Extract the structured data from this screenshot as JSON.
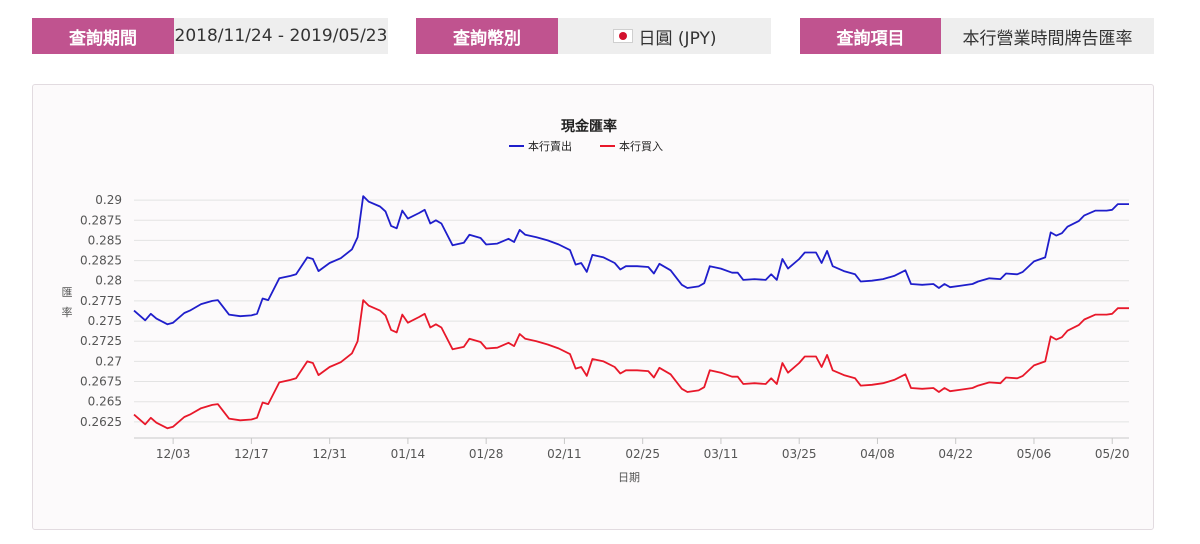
{
  "filters": {
    "period": {
      "label": "查詢期間",
      "value": "2018/11/24 - 2019/05/23"
    },
    "currency": {
      "label": "查詢幣別",
      "value": "日圓 (JPY)",
      "flag_icon": "japan-flag-icon"
    },
    "item": {
      "label": "查詢項目",
      "value": "本行營業時間牌告匯率"
    }
  },
  "colors": {
    "accent": "#c0538f",
    "sell": "#1f1ecb",
    "buy": "#e8182a",
    "grid": "#e3e3e3"
  },
  "chart_data": {
    "type": "line",
    "title": "現金匯率",
    "xlabel": "日期",
    "ylabel": "匯率",
    "ylim": [
      0.2605,
      0.2915
    ],
    "yticks": [
      0.2625,
      0.265,
      0.2675,
      0.27,
      0.2725,
      0.275,
      0.2775,
      0.28,
      0.2825,
      0.285,
      0.2875,
      0.29
    ],
    "ytick_labels": [
      "0.2625",
      "0.265",
      "0.2675",
      "0.27",
      "0.2725",
      "0.275",
      "0.2775",
      "0.28",
      "0.2825",
      "0.285",
      "0.2875",
      "0.29"
    ],
    "xticks": [
      "2018-12-03",
      "2018-12-17",
      "2018-12-31",
      "2019-01-14",
      "2019-01-28",
      "2019-02-11",
      "2019-02-25",
      "2019-03-11",
      "2019-03-25",
      "2019-04-08",
      "2019-04-22",
      "2019-05-06",
      "2019-05-20"
    ],
    "xtick_labels": [
      "12/03",
      "12/17",
      "12/31",
      "01/14",
      "01/28",
      "02/11",
      "02/25",
      "03/11",
      "03/25",
      "04/08",
      "04/22",
      "05/06",
      "05/20"
    ],
    "xrange": [
      "2018-11-26",
      "2019-05-23"
    ],
    "legend_position": "top-center",
    "grid": true,
    "series": [
      {
        "name": "本行賣出",
        "color": "#1f1ecb",
        "points": [
          [
            "2018-11-26",
            0.2763
          ],
          [
            "2018-11-28",
            0.2751
          ],
          [
            "2018-11-29",
            0.2759
          ],
          [
            "2018-11-30",
            0.2753
          ],
          [
            "2018-12-02",
            0.2746
          ],
          [
            "2018-12-03",
            0.2748
          ],
          [
            "2018-12-05",
            0.276
          ],
          [
            "2018-12-06",
            0.2763
          ],
          [
            "2018-12-08",
            0.2771
          ],
          [
            "2018-12-10",
            0.2775
          ],
          [
            "2018-12-11",
            0.2776
          ],
          [
            "2018-12-13",
            0.2758
          ],
          [
            "2018-12-15",
            0.2756
          ],
          [
            "2018-12-17",
            0.2757
          ],
          [
            "2018-12-18",
            0.2759
          ],
          [
            "2018-12-19",
            0.2778
          ],
          [
            "2018-12-20",
            0.2776
          ],
          [
            "2018-12-22",
            0.2803
          ],
          [
            "2018-12-24",
            0.2806
          ],
          [
            "2018-12-25",
            0.2808
          ],
          [
            "2018-12-27",
            0.2829
          ],
          [
            "2018-12-28",
            0.2827
          ],
          [
            "2018-12-29",
            0.2812
          ],
          [
            "2018-12-31",
            0.2822
          ],
          [
            "2019-01-02",
            0.2828
          ],
          [
            "2019-01-04",
            0.2839
          ],
          [
            "2019-01-05",
            0.2854
          ],
          [
            "2019-01-06",
            0.2905
          ],
          [
            "2019-01-07",
            0.2898
          ],
          [
            "2019-01-09",
            0.2892
          ],
          [
            "2019-01-10",
            0.2886
          ],
          [
            "2019-01-11",
            0.2868
          ],
          [
            "2019-01-12",
            0.2865
          ],
          [
            "2019-01-13",
            0.2887
          ],
          [
            "2019-01-14",
            0.2877
          ],
          [
            "2019-01-16",
            0.2884
          ],
          [
            "2019-01-17",
            0.2888
          ],
          [
            "2019-01-18",
            0.2871
          ],
          [
            "2019-01-19",
            0.2875
          ],
          [
            "2019-01-20",
            0.2871
          ],
          [
            "2019-01-22",
            0.2844
          ],
          [
            "2019-01-24",
            0.2847
          ],
          [
            "2019-01-25",
            0.2857
          ],
          [
            "2019-01-27",
            0.2853
          ],
          [
            "2019-01-28",
            0.2845
          ],
          [
            "2019-01-30",
            0.2846
          ],
          [
            "2019-02-01",
            0.2852
          ],
          [
            "2019-02-02",
            0.2848
          ],
          [
            "2019-02-03",
            0.2863
          ],
          [
            "2019-02-04",
            0.2857
          ],
          [
            "2019-02-06",
            0.2854
          ],
          [
            "2019-02-08",
            0.285
          ],
          [
            "2019-02-10",
            0.2845
          ],
          [
            "2019-02-12",
            0.2838
          ],
          [
            "2019-02-13",
            0.282
          ],
          [
            "2019-02-14",
            0.2822
          ],
          [
            "2019-02-15",
            0.2811
          ],
          [
            "2019-02-16",
            0.2832
          ],
          [
            "2019-02-18",
            0.2829
          ],
          [
            "2019-02-20",
            0.2822
          ],
          [
            "2019-02-21",
            0.2814
          ],
          [
            "2019-02-22",
            0.2818
          ],
          [
            "2019-02-24",
            0.2818
          ],
          [
            "2019-02-26",
            0.2817
          ],
          [
            "2019-02-27",
            0.2809
          ],
          [
            "2019-02-28",
            0.2821
          ],
          [
            "2019-03-02",
            0.2813
          ],
          [
            "2019-03-04",
            0.2795
          ],
          [
            "2019-03-05",
            0.2791
          ],
          [
            "2019-03-07",
            0.2793
          ],
          [
            "2019-03-08",
            0.2797
          ],
          [
            "2019-03-09",
            0.2818
          ],
          [
            "2019-03-11",
            0.2815
          ],
          [
            "2019-03-13",
            0.281
          ],
          [
            "2019-03-14",
            0.281
          ],
          [
            "2019-03-15",
            0.2801
          ],
          [
            "2019-03-17",
            0.2802
          ],
          [
            "2019-03-19",
            0.2801
          ],
          [
            "2019-03-20",
            0.2808
          ],
          [
            "2019-03-21",
            0.2801
          ],
          [
            "2019-03-22",
            0.2827
          ],
          [
            "2019-03-23",
            0.2815
          ],
          [
            "2019-03-25",
            0.2827
          ],
          [
            "2019-03-26",
            0.2835
          ],
          [
            "2019-03-28",
            0.2835
          ],
          [
            "2019-03-29",
            0.2822
          ],
          [
            "2019-03-30",
            0.2837
          ],
          [
            "2019-03-31",
            0.2818
          ],
          [
            "2019-04-02",
            0.2812
          ],
          [
            "2019-04-04",
            0.2808
          ],
          [
            "2019-04-05",
            0.2799
          ],
          [
            "2019-04-07",
            0.28
          ],
          [
            "2019-04-09",
            0.2802
          ],
          [
            "2019-04-11",
            0.2806
          ],
          [
            "2019-04-13",
            0.2813
          ],
          [
            "2019-04-14",
            0.2796
          ],
          [
            "2019-04-16",
            0.2795
          ],
          [
            "2019-04-18",
            0.2796
          ],
          [
            "2019-04-19",
            0.2791
          ],
          [
            "2019-04-20",
            0.2796
          ],
          [
            "2019-04-21",
            0.2792
          ],
          [
            "2019-04-23",
            0.2794
          ],
          [
            "2019-04-25",
            0.2796
          ],
          [
            "2019-04-26",
            0.2799
          ],
          [
            "2019-04-28",
            0.2803
          ],
          [
            "2019-04-30",
            0.2802
          ],
          [
            "2019-05-01",
            0.2809
          ],
          [
            "2019-05-03",
            0.2808
          ],
          [
            "2019-05-04",
            0.2811
          ],
          [
            "2019-05-06",
            0.2824
          ],
          [
            "2019-05-08",
            0.2829
          ],
          [
            "2019-05-09",
            0.286
          ],
          [
            "2019-05-10",
            0.2856
          ],
          [
            "2019-05-11",
            0.2859
          ],
          [
            "2019-05-12",
            0.2867
          ],
          [
            "2019-05-14",
            0.2874
          ],
          [
            "2019-05-15",
            0.2881
          ],
          [
            "2019-05-17",
            0.2887
          ],
          [
            "2019-05-19",
            0.2887
          ],
          [
            "2019-05-20",
            0.2888
          ],
          [
            "2019-05-21",
            0.2895
          ],
          [
            "2019-05-23",
            0.2895
          ]
        ]
      },
      {
        "name": "本行買入",
        "color": "#e8182a",
        "points": [
          [
            "2018-11-26",
            0.2634
          ],
          [
            "2018-11-28",
            0.2622
          ],
          [
            "2018-11-29",
            0.263
          ],
          [
            "2018-11-30",
            0.2624
          ],
          [
            "2018-12-02",
            0.2617
          ],
          [
            "2018-12-03",
            0.2619
          ],
          [
            "2018-12-05",
            0.2631
          ],
          [
            "2018-12-06",
            0.2634
          ],
          [
            "2018-12-08",
            0.2642
          ],
          [
            "2018-12-10",
            0.2646
          ],
          [
            "2018-12-11",
            0.2647
          ],
          [
            "2018-12-13",
            0.2629
          ],
          [
            "2018-12-15",
            0.2627
          ],
          [
            "2018-12-17",
            0.2628
          ],
          [
            "2018-12-18",
            0.263
          ],
          [
            "2018-12-19",
            0.2649
          ],
          [
            "2018-12-20",
            0.2647
          ],
          [
            "2018-12-22",
            0.2674
          ],
          [
            "2018-12-24",
            0.2677
          ],
          [
            "2018-12-25",
            0.2679
          ],
          [
            "2018-12-27",
            0.27
          ],
          [
            "2018-12-28",
            0.2698
          ],
          [
            "2018-12-29",
            0.2683
          ],
          [
            "2018-12-31",
            0.2693
          ],
          [
            "2019-01-02",
            0.2699
          ],
          [
            "2019-01-04",
            0.271
          ],
          [
            "2019-01-05",
            0.2725
          ],
          [
            "2019-01-06",
            0.2776
          ],
          [
            "2019-01-07",
            0.2769
          ],
          [
            "2019-01-09",
            0.2763
          ],
          [
            "2019-01-10",
            0.2757
          ],
          [
            "2019-01-11",
            0.2739
          ],
          [
            "2019-01-12",
            0.2736
          ],
          [
            "2019-01-13",
            0.2758
          ],
          [
            "2019-01-14",
            0.2748
          ],
          [
            "2019-01-16",
            0.2755
          ],
          [
            "2019-01-17",
            0.2759
          ],
          [
            "2019-01-18",
            0.2742
          ],
          [
            "2019-01-19",
            0.2746
          ],
          [
            "2019-01-20",
            0.2742
          ],
          [
            "2019-01-22",
            0.2715
          ],
          [
            "2019-01-24",
            0.2718
          ],
          [
            "2019-01-25",
            0.2728
          ],
          [
            "2019-01-27",
            0.2724
          ],
          [
            "2019-01-28",
            0.2716
          ],
          [
            "2019-01-30",
            0.2717
          ],
          [
            "2019-02-01",
            0.2723
          ],
          [
            "2019-02-02",
            0.2719
          ],
          [
            "2019-02-03",
            0.2734
          ],
          [
            "2019-02-04",
            0.2728
          ],
          [
            "2019-02-06",
            0.2725
          ],
          [
            "2019-02-08",
            0.2721
          ],
          [
            "2019-02-10",
            0.2716
          ],
          [
            "2019-02-12",
            0.2709
          ],
          [
            "2019-02-13",
            0.2691
          ],
          [
            "2019-02-14",
            0.2693
          ],
          [
            "2019-02-15",
            0.2682
          ],
          [
            "2019-02-16",
            0.2703
          ],
          [
            "2019-02-18",
            0.27
          ],
          [
            "2019-02-20",
            0.2693
          ],
          [
            "2019-02-21",
            0.2685
          ],
          [
            "2019-02-22",
            0.2689
          ],
          [
            "2019-02-24",
            0.2689
          ],
          [
            "2019-02-26",
            0.2688
          ],
          [
            "2019-02-27",
            0.268
          ],
          [
            "2019-02-28",
            0.2692
          ],
          [
            "2019-03-02",
            0.2684
          ],
          [
            "2019-03-04",
            0.2666
          ],
          [
            "2019-03-05",
            0.2662
          ],
          [
            "2019-03-07",
            0.2664
          ],
          [
            "2019-03-08",
            0.2668
          ],
          [
            "2019-03-09",
            0.2689
          ],
          [
            "2019-03-11",
            0.2686
          ],
          [
            "2019-03-13",
            0.2681
          ],
          [
            "2019-03-14",
            0.2681
          ],
          [
            "2019-03-15",
            0.2672
          ],
          [
            "2019-03-17",
            0.2673
          ],
          [
            "2019-03-19",
            0.2672
          ],
          [
            "2019-03-20",
            0.2679
          ],
          [
            "2019-03-21",
            0.2672
          ],
          [
            "2019-03-22",
            0.2698
          ],
          [
            "2019-03-23",
            0.2686
          ],
          [
            "2019-03-25",
            0.2698
          ],
          [
            "2019-03-26",
            0.2706
          ],
          [
            "2019-03-28",
            0.2706
          ],
          [
            "2019-03-29",
            0.2693
          ],
          [
            "2019-03-30",
            0.2708
          ],
          [
            "2019-03-31",
            0.2689
          ],
          [
            "2019-04-02",
            0.2683
          ],
          [
            "2019-04-04",
            0.2679
          ],
          [
            "2019-04-05",
            0.267
          ],
          [
            "2019-04-07",
            0.2671
          ],
          [
            "2019-04-09",
            0.2673
          ],
          [
            "2019-04-11",
            0.2677
          ],
          [
            "2019-04-13",
            0.2684
          ],
          [
            "2019-04-14",
            0.2667
          ],
          [
            "2019-04-16",
            0.2666
          ],
          [
            "2019-04-18",
            0.2667
          ],
          [
            "2019-04-19",
            0.2662
          ],
          [
            "2019-04-20",
            0.2667
          ],
          [
            "2019-04-21",
            0.2663
          ],
          [
            "2019-04-23",
            0.2665
          ],
          [
            "2019-04-25",
            0.2667
          ],
          [
            "2019-04-26",
            0.267
          ],
          [
            "2019-04-28",
            0.2674
          ],
          [
            "2019-04-30",
            0.2673
          ],
          [
            "2019-05-01",
            0.268
          ],
          [
            "2019-05-03",
            0.2679
          ],
          [
            "2019-05-04",
            0.2682
          ],
          [
            "2019-05-06",
            0.2695
          ],
          [
            "2019-05-08",
            0.27
          ],
          [
            "2019-05-09",
            0.2731
          ],
          [
            "2019-05-10",
            0.2727
          ],
          [
            "2019-05-11",
            0.273
          ],
          [
            "2019-05-12",
            0.2738
          ],
          [
            "2019-05-14",
            0.2745
          ],
          [
            "2019-05-15",
            0.2752
          ],
          [
            "2019-05-17",
            0.2758
          ],
          [
            "2019-05-19",
            0.2758
          ],
          [
            "2019-05-20",
            0.2759
          ],
          [
            "2019-05-21",
            0.2766
          ],
          [
            "2019-05-23",
            0.2766
          ]
        ]
      }
    ]
  }
}
